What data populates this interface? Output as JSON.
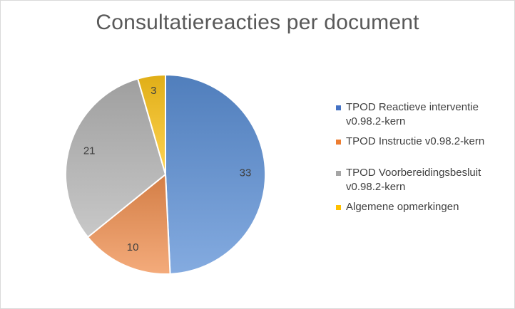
{
  "chart_data": {
    "type": "pie",
    "title": "Consultatiereacties per document",
    "legend_position": "right",
    "slices": [
      {
        "name": "TPOD Reactieve interventie v0.98.2-kern",
        "value": 33,
        "label": "33",
        "color": "#5b8fd6"
      },
      {
        "name": "TPOD Instructie  v0.98.2-kern",
        "value": 10,
        "label": "10",
        "color": "#f08f4f"
      },
      {
        "name": "TPOD Voorbereidingsbesluit v0.98.2-kern",
        "value": 21,
        "label": "21",
        "color": "#b5b5b5"
      },
      {
        "name": "Algemene opmerkingen",
        "value": 3,
        "label": "3",
        "color": "#ffc61a"
      }
    ]
  },
  "legend": [
    {
      "line1": "TPOD Reactieve interventie",
      "line2": "v0.98.2-kern"
    },
    {
      "line1": "TPOD Instructie  v0.98.2-kern",
      "line2": ""
    },
    {
      "line1": "TPOD Voorbereidingsbesluit",
      "line2": "v0.98.2-kern"
    },
    {
      "line1": "Algemene opmerkingen",
      "line2": ""
    }
  ]
}
